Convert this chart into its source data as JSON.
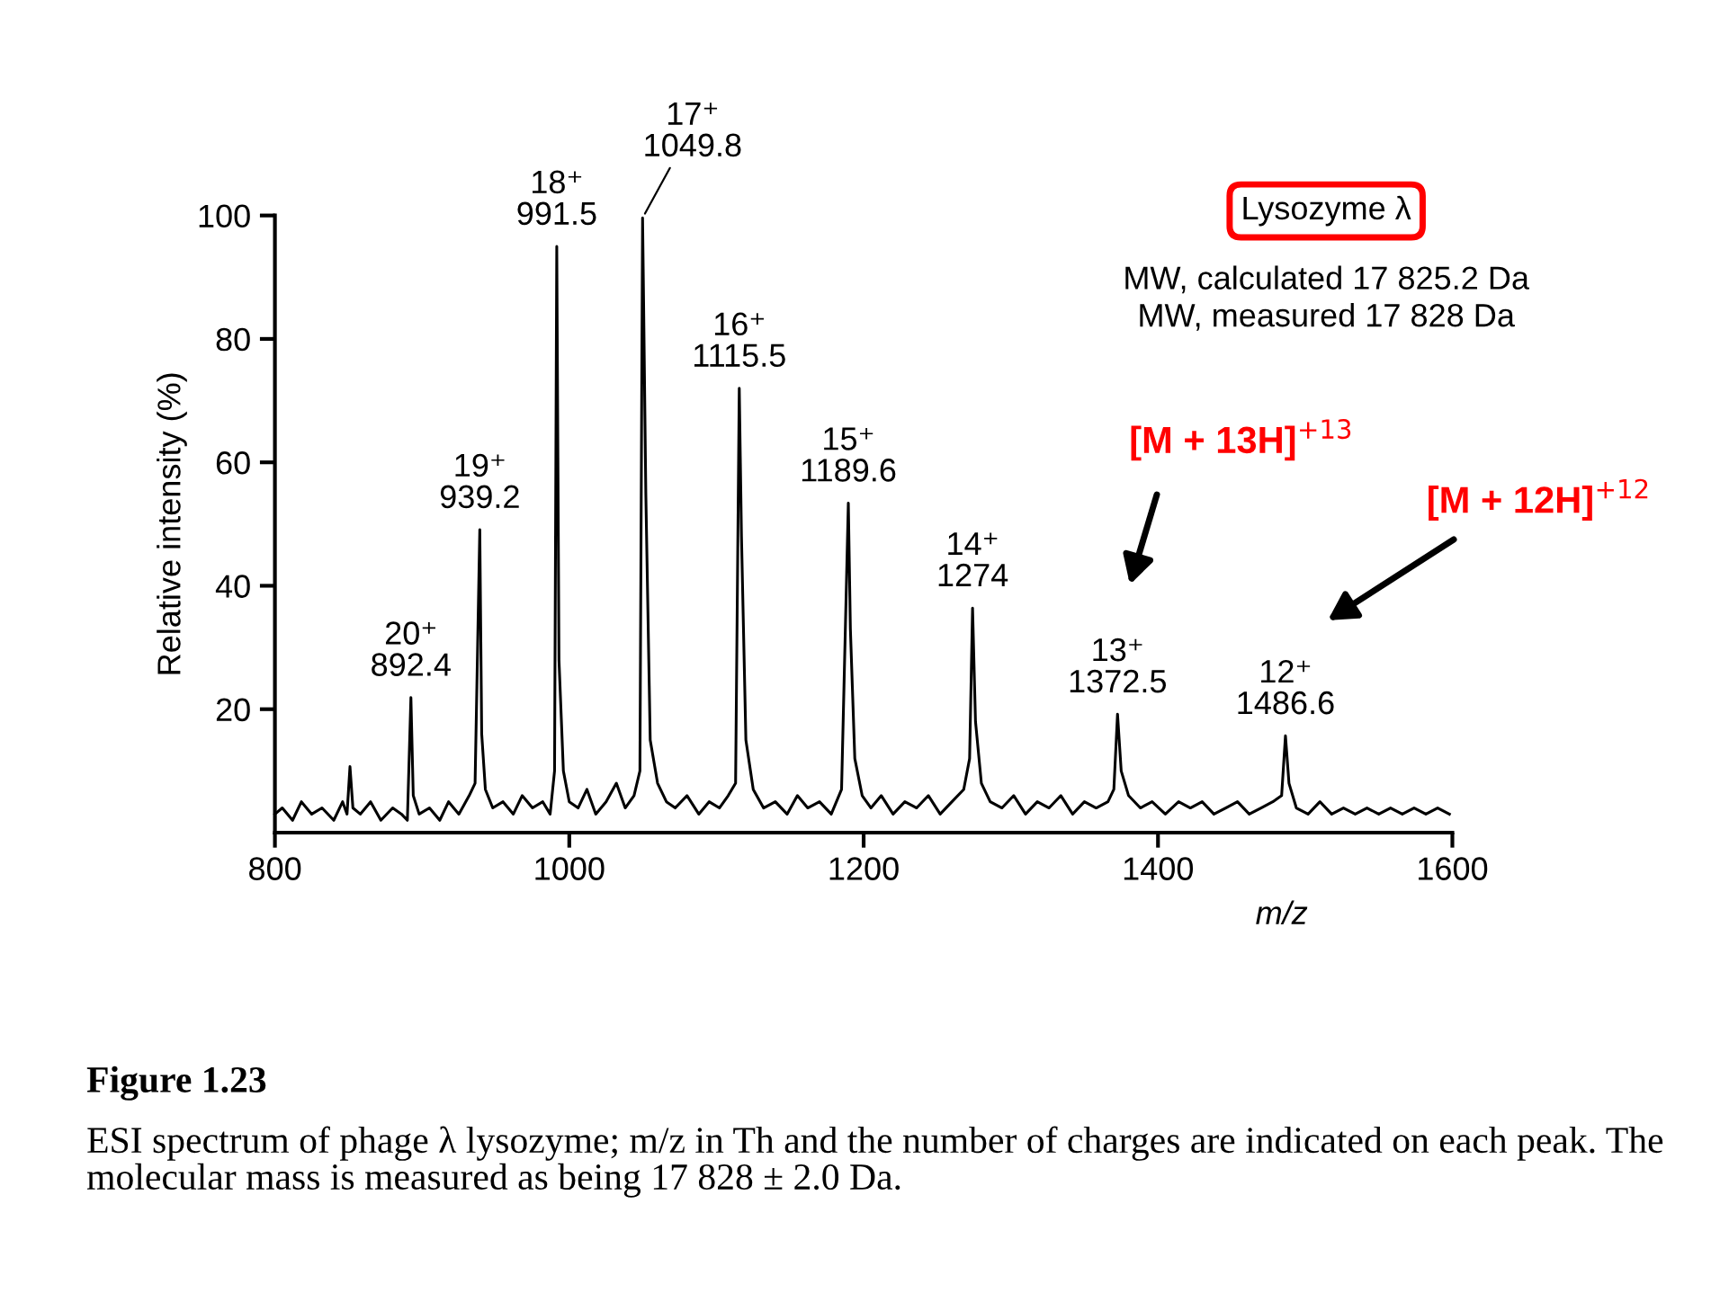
{
  "chart_data": {
    "type": "line",
    "xlabel": "m/z",
    "ylabel": "Relative intensity (%)",
    "xlim": [
      800,
      1600
    ],
    "xticks": [
      800,
      1000,
      1200,
      1400,
      1600
    ],
    "ylim": [
      0,
      100
    ],
    "yticks": [
      20,
      40,
      60,
      80,
      100
    ],
    "grid": false,
    "marker": "none",
    "line_style": "solid",
    "series": [
      {
        "color": "#000000",
        "x": [
          800,
          805,
          812,
          818,
          825,
          832,
          840,
          846,
          849,
          851,
          853,
          858,
          865,
          872,
          880,
          886,
          890,
          892.4,
          894,
          898,
          905,
          912,
          918,
          925,
          932,
          936,
          939.2,
          940.5,
          943,
          948,
          955,
          962,
          968,
          975,
          982,
          987,
          990,
          991.5,
          993,
          996,
          1000,
          1006,
          1012,
          1018,
          1025,
          1032,
          1038,
          1044,
          1048,
          1049.8,
          1050.5,
          1052,
          1055,
          1060,
          1066,
          1072,
          1080,
          1088,
          1095,
          1102,
          1108,
          1113,
          1115.5,
          1117,
          1120,
          1125,
          1132,
          1140,
          1148,
          1155,
          1162,
          1170,
          1178,
          1185,
          1189.6,
          1191,
          1194,
          1199,
          1205,
          1212,
          1220,
          1228,
          1236,
          1244,
          1252,
          1260,
          1268,
          1272,
          1274,
          1276,
          1280,
          1286,
          1294,
          1302,
          1310,
          1318,
          1326,
          1334,
          1342,
          1350,
          1358,
          1366,
          1370,
          1372.5,
          1375,
          1380,
          1388,
          1396,
          1405,
          1414,
          1422,
          1430,
          1438,
          1446,
          1454,
          1462,
          1470,
          1478,
          1484,
          1486.6,
          1489,
          1494,
          1502,
          1510,
          1518,
          1526,
          1534,
          1542,
          1550,
          1558,
          1566,
          1574,
          1582,
          1590,
          1598
        ],
        "values": [
          3,
          4,
          2,
          5,
          3,
          4,
          2,
          5,
          3,
          10.7,
          4,
          3,
          5,
          2,
          4,
          3,
          2,
          21.9,
          6,
          3,
          4,
          2,
          5,
          3,
          6,
          8,
          49.1,
          16,
          7,
          4,
          5,
          3,
          6,
          4,
          5,
          3,
          10,
          95,
          28,
          10,
          5,
          4,
          7,
          3,
          5,
          8,
          4,
          6,
          10,
          99.6,
          86,
          55,
          15,
          8,
          5,
          4,
          6,
          3,
          5,
          4,
          6,
          8,
          72,
          48,
          15,
          7,
          4,
          5,
          3,
          6,
          4,
          5,
          3,
          7,
          53.4,
          33,
          12,
          6,
          4,
          6,
          3,
          5,
          4,
          6,
          3,
          5,
          7,
          12,
          36.4,
          18,
          8,
          5,
          4,
          6,
          3,
          5,
          4,
          6,
          3,
          5,
          4,
          5,
          7,
          19.2,
          10,
          6,
          4,
          5,
          3,
          5,
          4,
          5,
          3,
          4,
          5,
          3,
          4,
          5,
          6,
          15.7,
          8,
          4,
          3,
          5,
          3,
          4,
          3,
          4,
          3,
          4,
          3,
          4,
          3,
          4,
          3
        ]
      }
    ],
    "annotations": [
      {
        "text": "20⁺\n892.4",
        "x": 892.4,
        "y": 21.9
      },
      {
        "text": "19⁺\n939.2",
        "x": 939.2,
        "y": 49.1
      },
      {
        "text": "18⁺\n991.5",
        "x": 991.5,
        "y": 95
      },
      {
        "text": "17⁺\n1049.8",
        "x": 1049.8,
        "y": 99.6
      },
      {
        "text": "16⁺\n1115.5",
        "x": 1115.5,
        "y": 72
      },
      {
        "text": "15⁺\n1189.6",
        "x": 1189.6,
        "y": 53.4
      },
      {
        "text": "14⁺\n1274",
        "x": 1274,
        "y": 36.4
      },
      {
        "text": "13⁺\n1372.5",
        "x": 1372.5,
        "y": 19.2
      },
      {
        "text": "12⁺\n1486.6",
        "x": 1486.6,
        "y": 15.7
      },
      "[M + 13H]$^{+13}$",
      "[M + 12H]$^{+12}$",
      "Lysozyme λ",
      "MW, calculated 17 825.2 Da\nMW, measured 17 828 Da",
      "Figure 1.23",
      "ESI spectrum of phage λ lysozyme; m/z in Th and the number of charges are indicated on each peak. The molecular mass is measured as being 17 828 ± 2.0 Da."
    ]
  }
}
